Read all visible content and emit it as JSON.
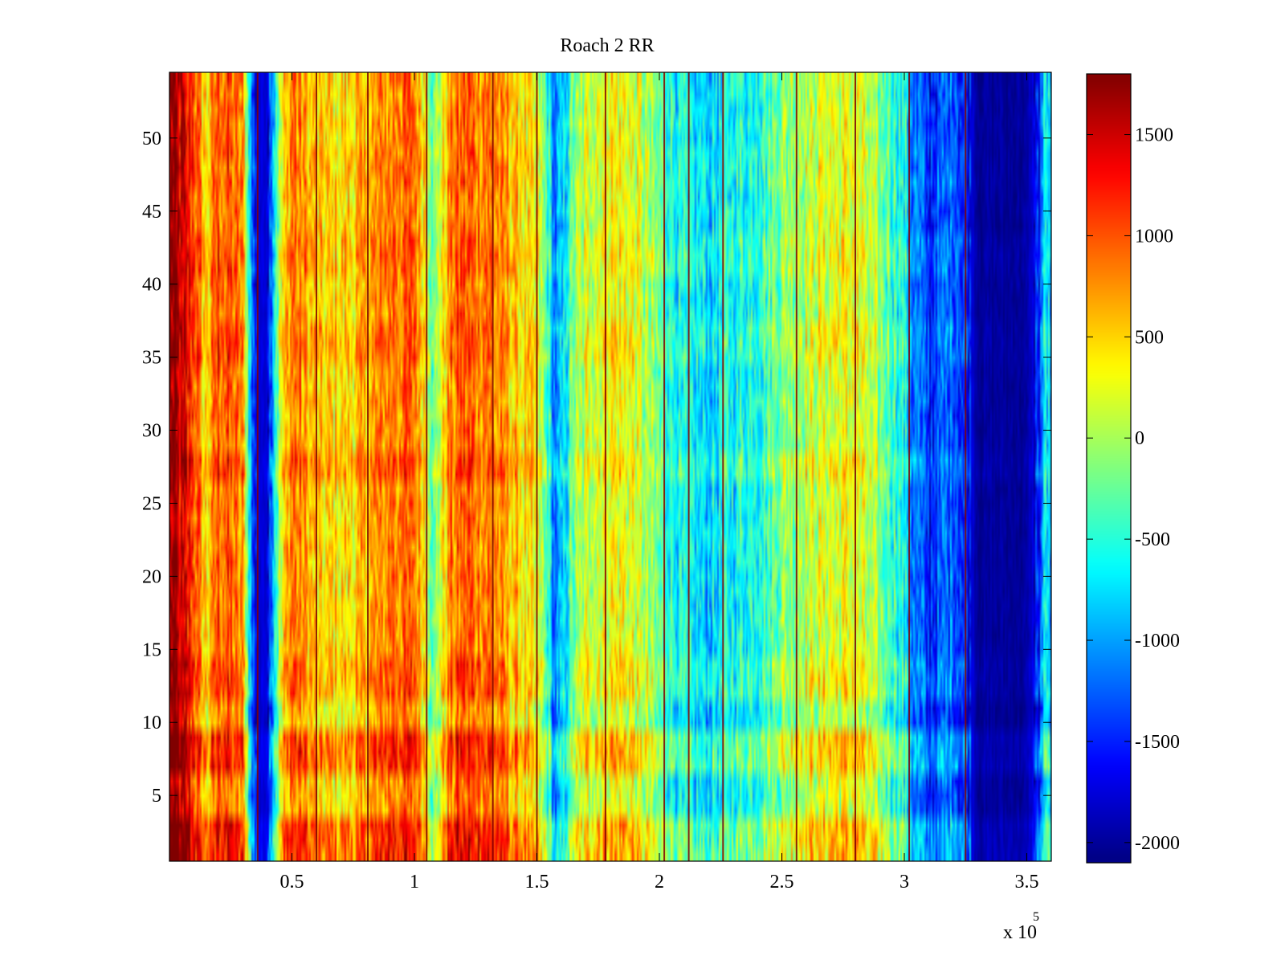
{
  "chart_data": {
    "type": "heatmap",
    "title": "Roach 2 RR",
    "xlabel": "",
    "ylabel": "",
    "x_exponent_label": "x 10",
    "x_exponent_power": "5",
    "xlim": [
      0,
      3.6
    ],
    "ylim": [
      0.5,
      54.5
    ],
    "x_ticks": [
      0.5,
      1,
      1.5,
      2,
      2.5,
      3,
      3.5
    ],
    "x_tick_labels": [
      "0.5",
      "1",
      "1.5",
      "2",
      "2.5",
      "3",
      "3.5"
    ],
    "y_ticks": [
      5,
      10,
      15,
      20,
      25,
      30,
      35,
      40,
      45,
      50
    ],
    "y_tick_labels": [
      "5",
      "10",
      "15",
      "20",
      "25",
      "30",
      "35",
      "40",
      "45",
      "50"
    ],
    "colormap": "jet",
    "color_limits": [
      -2100,
      1800
    ],
    "colorbar_ticks": [
      1500,
      1000,
      500,
      0,
      -500,
      -1000,
      -1500,
      -2000
    ],
    "colorbar_tick_labels": [
      "1500",
      "1000",
      "500",
      "0",
      "-500",
      "-1000",
      "-1500",
      "-2000"
    ],
    "grid": false,
    "column_profile_x": [
      0,
      0.02,
      0.05,
      0.1,
      0.15,
      0.2,
      0.25,
      0.3,
      0.32,
      0.34,
      0.37,
      0.4,
      0.43,
      0.46,
      0.5,
      0.55,
      0.6,
      0.7,
      0.8,
      0.9,
      1.0,
      1.05,
      1.08,
      1.1,
      1.15,
      1.2,
      1.3,
      1.4,
      1.5,
      1.55,
      1.57,
      1.6,
      1.65,
      1.7,
      1.8,
      1.9,
      2.0,
      2.1,
      2.2,
      2.3,
      2.4,
      2.5,
      2.6,
      2.7,
      2.8,
      2.9,
      3.0,
      3.03,
      3.1,
      3.2,
      3.25,
      3.3,
      3.4,
      3.5,
      3.55,
      3.58,
      3.6
    ],
    "column_profile_value": [
      1700,
      1650,
      1400,
      1100,
      400,
      1000,
      900,
      700,
      -300,
      -1400,
      -1800,
      -1700,
      -600,
      300,
      900,
      700,
      450,
      400,
      550,
      850,
      900,
      300,
      -400,
      100,
      800,
      950,
      850,
      550,
      200,
      -500,
      -1200,
      -1000,
      -200,
      100,
      350,
      200,
      -300,
      -700,
      -800,
      -600,
      -500,
      -150,
      100,
      200,
      250,
      -200,
      -600,
      -1100,
      -1500,
      -1200,
      -1500,
      -2000,
      -2000,
      -2000,
      -1500,
      -600,
      -1000
    ],
    "row_intensity_deltas": [
      {
        "y": 2,
        "delta": 400
      },
      {
        "y": 8,
        "delta": 350
      },
      {
        "y": 10.5,
        "delta": -120
      },
      {
        "y": 13,
        "delta": 150
      },
      {
        "y": 27.5,
        "delta": 200
      },
      {
        "y": 36,
        "delta": 150
      },
      {
        "y": 42,
        "delta": 120
      },
      {
        "y": 48,
        "delta": 60
      }
    ],
    "vertical_streaks_x": [
      0.36,
      0.6,
      0.81,
      1.05,
      1.32,
      1.5,
      1.78,
      2.02,
      2.12,
      2.26,
      2.56,
      2.8,
      3.02,
      3.25
    ],
    "vertical_streak_value": 1800
  }
}
